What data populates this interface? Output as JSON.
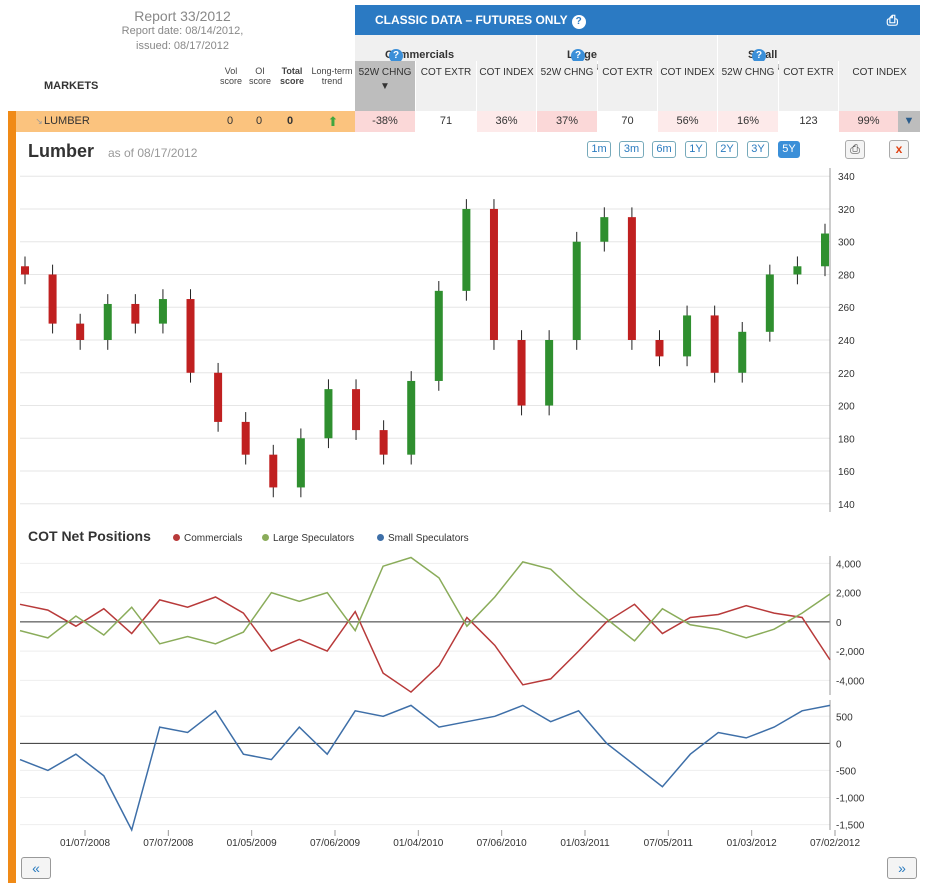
{
  "report": {
    "title": "Report 33/2012",
    "date_line": "Report date: 08/14/2012,",
    "issued_line": "issued: 08/17/2012"
  },
  "header": {
    "title": "CLASSIC DATA – FUTURES ONLY"
  },
  "groups": {
    "commercials": "Commercials",
    "large": "Large Speculators",
    "small": "Small Speculators"
  },
  "cols": {
    "chng": "52W CHNG",
    "extr": "COT EXTR",
    "index": "COT INDEX"
  },
  "markets_label": "MARKETS",
  "score_headers": {
    "vol": "Vol score",
    "oi": "OI score",
    "total": "Total score",
    "trend": "Long-term trend"
  },
  "row": {
    "name": "LUMBER",
    "vol": "0",
    "oi": "0",
    "total": "0",
    "values": [
      "-38%",
      "71",
      "36%",
      "37%",
      "70",
      "56%",
      "16%",
      "123",
      "99%"
    ]
  },
  "chart": {
    "title": "Lumber",
    "asof": "as of 08/17/2012",
    "ranges": [
      "1m",
      "3m",
      "6m",
      "1Y",
      "2Y",
      "3Y",
      "5Y"
    ],
    "active_range": "5Y"
  },
  "cot": {
    "title": "COT Net Positions",
    "legend": [
      "Commercials",
      "Large Speculators",
      "Small Speculators"
    ]
  },
  "colors": {
    "accent": "#2b7ac3",
    "commercials": "#b83a3a",
    "large": "#8aac5a",
    "small": "#3e6fa8",
    "up": "#2f8f2f",
    "down": "#c02020"
  },
  "chart_data": [
    {
      "type": "candlestick",
      "title": "Lumber",
      "ylim": [
        135,
        345
      ],
      "yticks": [
        "340",
        "320",
        "300",
        "280",
        "260",
        "240",
        "220",
        "200",
        "180",
        "160",
        "140"
      ],
      "x": [
        "2007-08",
        "2007-11",
        "2008-01",
        "2008-04",
        "2008-07",
        "2008-09",
        "2008-11",
        "2009-01",
        "2009-03",
        "2009-05",
        "2009-07",
        "2009-09",
        "2009-11",
        "2010-01",
        "2010-03",
        "2010-05",
        "2010-07",
        "2010-09",
        "2010-11",
        "2011-01",
        "2011-03",
        "2011-05",
        "2011-07",
        "2011-09",
        "2011-11",
        "2012-01",
        "2012-03",
        "2012-05",
        "2012-07",
        "2012-08"
      ],
      "close": [
        280,
        250,
        240,
        262,
        250,
        265,
        220,
        190,
        170,
        150,
        180,
        210,
        185,
        170,
        215,
        270,
        320,
        240,
        200,
        240,
        300,
        315,
        240,
        230,
        255,
        220,
        245,
        280,
        285,
        305
      ]
    },
    {
      "type": "line",
      "title": "COT Net Positions",
      "ylim": [
        -5000,
        4500
      ],
      "yticks": [
        "4,000",
        "2,000",
        "0",
        "-2,000",
        "-4,000"
      ],
      "series": [
        {
          "name": "Commercials",
          "values": [
            1200,
            800,
            -300,
            900,
            -800,
            1500,
            1000,
            1700,
            600,
            -2000,
            -1200,
            -2000,
            700,
            -3500,
            -4800,
            -3000,
            300,
            -1600,
            -4300,
            -3900,
            -2000,
            0,
            1200,
            -800,
            300,
            500,
            1100,
            600,
            300,
            -2600
          ]
        },
        {
          "name": "Large Speculators",
          "values": [
            -600,
            -1100,
            400,
            -900,
            1000,
            -1500,
            -1000,
            -1500,
            -700,
            2000,
            1400,
            2000,
            -600,
            3800,
            4400,
            3000,
            -300,
            1700,
            4100,
            3600,
            1800,
            200,
            -1300,
            900,
            -200,
            -500,
            -1100,
            -500,
            600,
            1900
          ]
        }
      ]
    },
    {
      "type": "line",
      "title": "",
      "ylim": [
        -1600,
        800
      ],
      "yticks": [
        "500",
        "0",
        "-500",
        "-1,000",
        "-1,500"
      ],
      "series": [
        {
          "name": "Small Speculators",
          "values": [
            -300,
            -500,
            -200,
            -600,
            -1600,
            300,
            200,
            600,
            -200,
            -300,
            300,
            -200,
            600,
            500,
            700,
            300,
            400,
            500,
            700,
            400,
            600,
            0,
            -400,
            -800,
            -200,
            200,
            100,
            300,
            600,
            700
          ]
        }
      ]
    }
  ],
  "xaxis": [
    "01/07/2008",
    "07/07/2008",
    "01/05/2009",
    "07/06/2009",
    "01/04/2010",
    "07/06/2010",
    "01/03/2011",
    "07/05/2011",
    "01/03/2012",
    "07/02/2012"
  ],
  "nav": {
    "prev": "«",
    "next": "»"
  }
}
